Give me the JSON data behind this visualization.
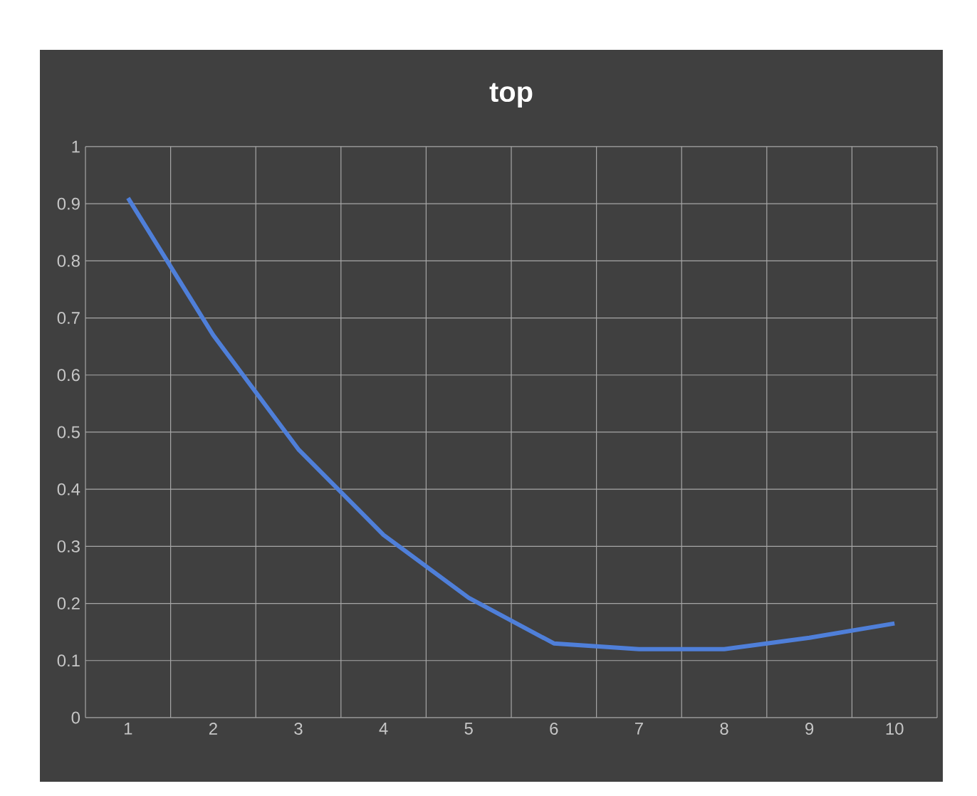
{
  "chart_data": {
    "type": "line",
    "title": "top",
    "categories": [
      "1",
      "2",
      "3",
      "4",
      "5",
      "6",
      "7",
      "8",
      "9",
      "10"
    ],
    "values": [
      0.91,
      0.67,
      0.47,
      0.32,
      0.21,
      0.13,
      0.12,
      0.12,
      0.14,
      0.165
    ],
    "color": "#4f7fd9",
    "ylim": [
      0,
      1
    ],
    "yticks": [
      0,
      0.1,
      0.2,
      0.3,
      0.4,
      0.5,
      0.6,
      0.7,
      0.8,
      0.9,
      1
    ],
    "grid": true,
    "marker": "none",
    "line_style": "solid"
  }
}
